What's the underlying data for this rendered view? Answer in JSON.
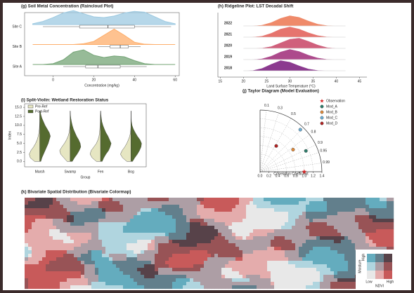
{
  "chart_data": [
    {
      "type": "raincloud",
      "title": "(g) Soil Metal Concentration (Raincloud Plot)",
      "xlabel": "Concentration (mg/kg)",
      "xlim": [
        -14,
        62
      ],
      "xticks": [
        0,
        20,
        40,
        60
      ],
      "x": [
        -10,
        -5,
        0,
        5,
        10,
        15,
        20,
        25,
        30,
        35,
        40,
        45,
        50,
        55,
        60
      ],
      "series": [
        {
          "name": "Site C",
          "color": "#9ecae1",
          "values": [
            0.05,
            0.2,
            0.45,
            0.75,
            0.9,
            0.7,
            0.5,
            0.45,
            0.55,
            0.75,
            0.85,
            0.8,
            0.5,
            0.2,
            0.05
          ],
          "box": [
            -5,
            13,
            27,
            40,
            58
          ]
        },
        {
          "name": "Site B",
          "color": "#fdae6b",
          "values": [
            0,
            0,
            0,
            0,
            0,
            0.05,
            0.2,
            0.6,
            1.0,
            0.6,
            0.15,
            0.02,
            0,
            0,
            0
          ],
          "box": [
            22,
            28,
            33,
            37,
            43
          ]
        },
        {
          "name": "Site A",
          "color": "#74a476",
          "values": [
            0,
            0,
            0.05,
            0.3,
            0.8,
            0.95,
            0.6,
            0.45,
            0.55,
            0.5,
            0.25,
            0.05,
            0,
            0,
            0
          ],
          "box": [
            5,
            16,
            22,
            33,
            46
          ]
        }
      ]
    },
    {
      "type": "ridgeline",
      "title": "(h) Ridgeline Plot: LST Decadal Shift",
      "xlabel": "Land Surface Temperature (°C)",
      "xlim": [
        14.5,
        46
      ],
      "xticks": [
        15,
        20,
        25,
        30,
        35,
        40,
        45
      ],
      "x": [
        20,
        22,
        24,
        26,
        28,
        30,
        32,
        34,
        36,
        38,
        40,
        42
      ],
      "series": [
        {
          "name": "2022",
          "color": "#ef8a6a",
          "values": [
            0,
            0.02,
            0.1,
            0.35,
            0.75,
            1.0,
            0.85,
            0.5,
            0.2,
            0.06,
            0.01,
            0
          ]
        },
        {
          "name": "2021",
          "color": "#e6746e",
          "values": [
            0,
            0.03,
            0.12,
            0.4,
            0.8,
            1.0,
            0.8,
            0.45,
            0.18,
            0.05,
            0.01,
            0
          ]
        },
        {
          "name": "2020",
          "color": "#d0607c",
          "values": [
            0,
            0.01,
            0.05,
            0.2,
            0.55,
            0.9,
            1.0,
            0.7,
            0.35,
            0.1,
            0.02,
            0
          ]
        },
        {
          "name": "2019",
          "color": "#ad4a8c",
          "values": [
            0,
            0.02,
            0.1,
            0.35,
            0.75,
            1.0,
            0.8,
            0.45,
            0.18,
            0.05,
            0.01,
            0
          ]
        },
        {
          "name": "2018",
          "color": "#8b3a8f",
          "values": [
            0,
            0.05,
            0.25,
            0.65,
            1.0,
            0.85,
            0.5,
            0.2,
            0.06,
            0.01,
            0,
            0
          ]
        }
      ]
    },
    {
      "type": "violin",
      "title": "(i) Split-Violin: Wetland Restoration Status",
      "xlabel": "Group",
      "ylabel": "Index",
      "ylim": [
        -1.5,
        16
      ],
      "yticks": [
        {
          "value": 0,
          "label": "0.0"
        },
        2.5,
        {
          "value": 5,
          "label": "5.0"
        },
        7.5,
        {
          "value": 10,
          "label": "10.0"
        },
        12.5,
        {
          "value": 15,
          "label": "15.0"
        }
      ],
      "categories": [
        "Marsh",
        "Swamp",
        "Fen",
        "Bog"
      ],
      "y": [
        0,
        1,
        2,
        3,
        4,
        5,
        6,
        7,
        8,
        9,
        10,
        11,
        12,
        13,
        14
      ],
      "series": [
        {
          "name": "Pre-Ref",
          "color": "#e6e6c2",
          "values": [
            [
              0.5,
              0.9,
              1.0,
              0.85,
              0.6,
              0.4,
              0.25,
              0.15,
              0.08,
              0.04,
              0.02,
              0,
              0,
              0,
              0
            ],
            [
              0.3,
              0.6,
              0.9,
              1.0,
              0.8,
              0.55,
              0.35,
              0.2,
              0.1,
              0.05,
              0.02,
              0,
              0,
              0,
              0
            ],
            [
              0.4,
              0.8,
              1.0,
              0.9,
              0.65,
              0.4,
              0.25,
              0.15,
              0.1,
              0.07,
              0.05,
              0.03,
              0.02,
              0.01,
              0
            ],
            [
              0.4,
              0.8,
              1.0,
              0.85,
              0.6,
              0.4,
              0.25,
              0.12,
              0.05,
              0.02,
              0,
              0,
              0,
              0,
              0
            ]
          ]
        },
        {
          "name": "Post-Ref",
          "color": "#556b2f",
          "values": [
            [
              0.1,
              0.2,
              0.35,
              0.5,
              0.65,
              0.8,
              0.9,
              1.0,
              0.9,
              0.7,
              0.5,
              0.35,
              0.2,
              0.1,
              0.05
            ],
            [
              0.2,
              0.4,
              0.65,
              0.85,
              1.0,
              0.95,
              0.8,
              0.6,
              0.45,
              0.3,
              0.2,
              0.12,
              0.06,
              0.02,
              0
            ],
            [
              0.15,
              0.3,
              0.5,
              0.75,
              0.9,
              1.0,
              0.85,
              0.7,
              0.5,
              0.35,
              0.22,
              0.12,
              0.07,
              0.03,
              0.01
            ],
            [
              0.15,
              0.35,
              0.6,
              0.8,
              0.95,
              1.0,
              0.85,
              0.6,
              0.4,
              0.22,
              0.1,
              0.04,
              0.01,
              0,
              0
            ]
          ]
        }
      ]
    },
    {
      "type": "taylor",
      "title": "(j) Taylor Diagram (Model Evaluation)",
      "xlabel": "Correlation Coefficient",
      "xlim": [
        0,
        1.4
      ],
      "xticks": [
        {
          "value": 0,
          "label": "0.0"
        },
        0.2,
        0.4,
        0.6,
        0.8,
        {
          "value": 1,
          "label": "1.0"
        },
        1.2,
        1.4
      ],
      "corrticks": [
        0.1,
        0.3,
        0.5,
        0.7,
        0.8,
        0.9,
        0.95,
        0.99
      ],
      "series": [
        {
          "name": "Observation",
          "color": "#d62728",
          "marker": "star",
          "std": 1.0,
          "corr": 1.0
        },
        {
          "name": "Mod_A",
          "color": "#2e7d6b",
          "marker": "circle",
          "std": 1.14,
          "corr": 0.91
        },
        {
          "name": "Mod_B",
          "color": "#e08a3a",
          "marker": "circle",
          "std": 0.9,
          "corr": 0.83
        },
        {
          "name": "Mod_C",
          "color": "#6baed6",
          "marker": "circle",
          "std": 1.32,
          "corr": 0.69
        },
        {
          "name": "Mod_D",
          "color": "#b22222",
          "marker": "circle",
          "std": 0.69,
          "corr": 0.53
        }
      ]
    },
    {
      "type": "bivariate-map",
      "title": "(k) Bivariate Spatial Distribution (Bivariate Colormap)",
      "xlabel": "NDVI",
      "ylabel": "Moisture",
      "x_low": "Low",
      "x_high": "High",
      "y_high": "High",
      "palette": [
        [
          "#e8e8e8",
          "#e4acac",
          "#c85a5a"
        ],
        [
          "#b0d5df",
          "#ad9ea5",
          "#985356"
        ],
        [
          "#64acbe",
          "#627f8c",
          "#574249"
        ]
      ]
    }
  ]
}
